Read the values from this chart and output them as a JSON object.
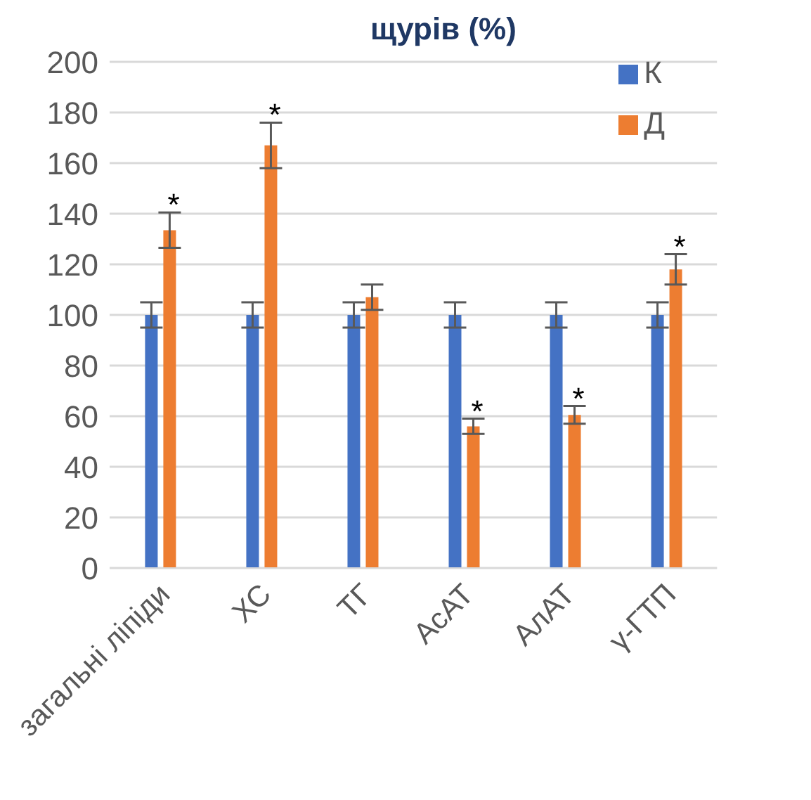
{
  "chart_data": {
    "type": "bar",
    "title": "щурів (%)",
    "categories": [
      "загальні ліпіди",
      "ХС",
      "ТГ",
      "АсАТ",
      "АлАТ",
      "γ-ГТП"
    ],
    "series": [
      {
        "name": "К",
        "color": "#4472c4",
        "values": [
          100,
          100,
          100,
          100,
          100,
          100
        ],
        "errors": [
          5,
          5,
          5,
          5,
          5,
          5
        ]
      },
      {
        "name": "Д",
        "color": "#ed7d31",
        "values": [
          133.5,
          167,
          107,
          56,
          60.5,
          118
        ],
        "errors": [
          7,
          9,
          5,
          3,
          3.5,
          6
        ]
      }
    ],
    "ylim": [
      0,
      200
    ],
    "yticks": [
      0,
      20,
      40,
      60,
      80,
      100,
      120,
      140,
      160,
      180,
      200
    ],
    "grid": "y",
    "legend": "top right",
    "annotations": [
      {
        "text": "*",
        "x": "загальні ліпіди",
        "y": 133.5
      },
      {
        "text": "*",
        "x": "ХС",
        "y": 167
      },
      {
        "text": "*",
        "x": "АсАТ",
        "y": 56
      },
      {
        "text": "*",
        "x": "АлАТ",
        "y": 60.5
      },
      {
        "text": "*",
        "x": "γ-ГТП",
        "y": 118
      }
    ]
  }
}
